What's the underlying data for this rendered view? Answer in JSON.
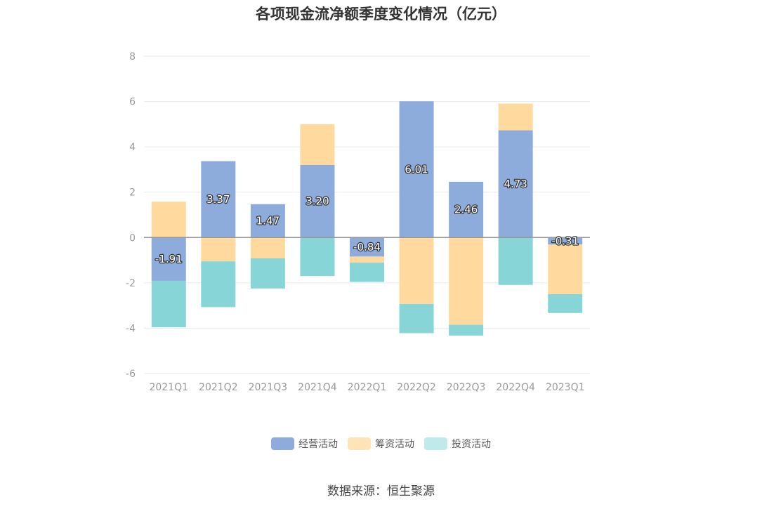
{
  "title": "各项现金流净额季度变化情况（亿元）",
  "source": "数据来源：恒生聚源",
  "chart_data": {
    "type": "bar",
    "stacked": true,
    "categories": [
      "2021Q1",
      "2021Q2",
      "2021Q3",
      "2021Q4",
      "2022Q1",
      "2022Q2",
      "2022Q3",
      "2022Q4",
      "2023Q1"
    ],
    "ylim": [
      -6,
      8
    ],
    "yticks": [
      8,
      6,
      4,
      2,
      0,
      -2,
      -4,
      -6
    ],
    "grid": true,
    "legend_position": "bottom",
    "series": [
      {
        "name": "经营活动",
        "color": "#8eacdb",
        "values": [
          -1.91,
          3.37,
          1.47,
          3.2,
          -0.84,
          6.01,
          2.46,
          4.73,
          -0.31
        ],
        "labels": true
      },
      {
        "name": "筹资活动",
        "color": "#ffd99d",
        "values": [
          1.58,
          -1.05,
          -0.92,
          1.8,
          -0.27,
          -2.93,
          -3.85,
          1.18,
          -2.19
        ],
        "labels": false
      },
      {
        "name": "投资活动",
        "color": "#87d5d7",
        "values": [
          -2.05,
          -2.02,
          -1.33,
          -1.7,
          -0.85,
          -1.29,
          -0.48,
          -2.09,
          -0.83
        ],
        "labels": false
      }
    ]
  },
  "legend_colors": [
    "#8eacdb",
    "#ffe4b8",
    "#bfe9ea"
  ]
}
